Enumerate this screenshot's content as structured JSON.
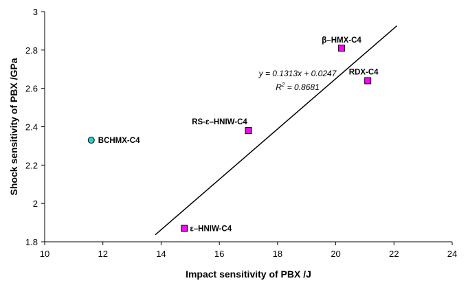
{
  "chart_data": {
    "type": "scatter",
    "xlabel": "Impact sensitivity of PBX /J",
    "ylabel": "Shock sensitivity of PBX /GPa",
    "xlim": [
      10,
      24
    ],
    "ylim": [
      1.8,
      3.0
    ],
    "xticks": [
      10,
      12,
      14,
      16,
      18,
      20,
      22,
      24
    ],
    "yticks": [
      1.8,
      2.0,
      2.2,
      2.4,
      2.6,
      2.8,
      3.0
    ],
    "xtick_labels": [
      "10",
      "12",
      "14",
      "16",
      "18",
      "20",
      "22",
      "24"
    ],
    "ytick_labels": [
      "1.8",
      "2",
      "2.2",
      "2.4",
      "2.6",
      "2.8",
      "3"
    ],
    "grid": false,
    "colors": {
      "square": "#ff00ff",
      "circle": "#33cccc"
    },
    "points": [
      {
        "label": "β–HMX-C4",
        "x": 20.2,
        "y": 2.81,
        "marker": "square"
      },
      {
        "label": "RDX-C4",
        "x": 21.1,
        "y": 2.64,
        "marker": "square"
      },
      {
        "label": "RS-ε–HNIW-C4",
        "x": 17.0,
        "y": 2.38,
        "marker": "square"
      },
      {
        "label": "ε–HNIW-C4",
        "x": 14.8,
        "y": 1.87,
        "marker": "square"
      },
      {
        "label": "BCHMX-C4",
        "x": 11.6,
        "y": 2.33,
        "marker": "circle"
      }
    ],
    "fit": {
      "slope": 0.1313,
      "intercept": 0.0247,
      "x_range": [
        13.8,
        22.1
      ],
      "equation": "y = 0.1313x + 0.0247",
      "r2_prefix": "R",
      "r2_exp": "2",
      "r2_suffix": " = 0.8681"
    }
  }
}
